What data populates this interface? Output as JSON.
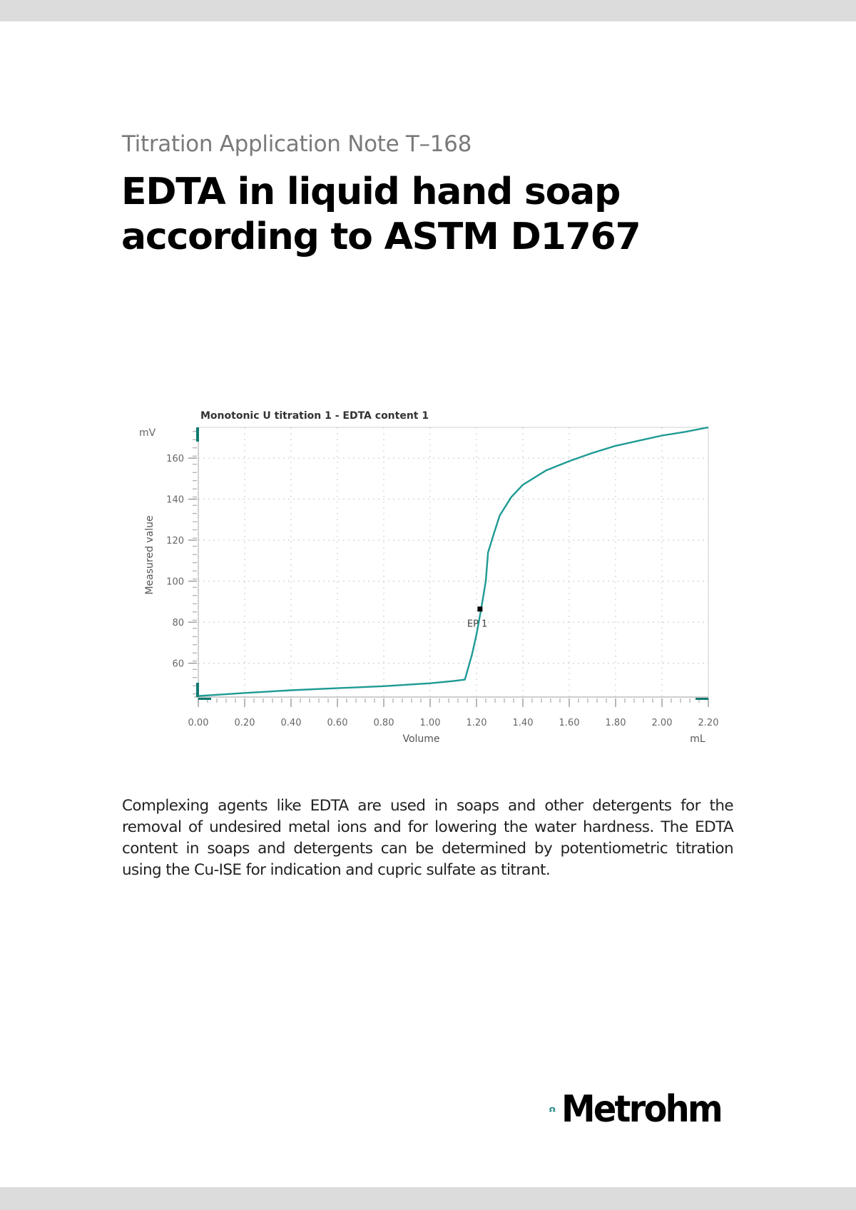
{
  "document": {
    "subtitle": "Titration Application Note T–168",
    "title_line1": "EDTA in liquid hand soap",
    "title_line2": "according to ASTM D1767",
    "body_paragraph": "Complexing agents like EDTA are used in soaps and other detergents for the removal of undesired metal ions and for lowering the water hardness. The EDTA content in soaps and detergents can be determined by potentiometric titration using the Cu-ISE for indication and cupric sulfate as titrant.",
    "logo_text": "Metrohm",
    "logo_icon": "omega-icon",
    "colors": {
      "brand_teal": "#2a8a8c",
      "curve_teal": "#1e9a94",
      "page_background": "#dcdcdc"
    }
  },
  "chart": {
    "title": "Monotonic U titration 1 - EDTA content  1",
    "y_unit": "mV",
    "y_label": "Measured value",
    "x_label": "Volume",
    "x_unit": "mL",
    "y_ticks": [
      "60",
      "80",
      "100",
      "120",
      "140",
      "160"
    ],
    "x_ticks": [
      "0.00",
      "0.20",
      "0.40",
      "0.60",
      "0.80",
      "1.00",
      "1.20",
      "1.40",
      "1.60",
      "1.80",
      "2.00",
      "2.20"
    ],
    "endpoint_label": "EP 1"
  },
  "chart_data": {
    "type": "line",
    "title": "Monotonic U titration 1 - EDTA content  1",
    "xlabel": "Volume (mL)",
    "ylabel": "Measured value (mV)",
    "xlim": [
      0.0,
      2.2
    ],
    "ylim": [
      43.5,
      175
    ],
    "grid": true,
    "legend": "none",
    "x_tick_labels": [
      "0.00",
      "0.20",
      "0.40",
      "0.60",
      "0.80",
      "1.00",
      "1.20",
      "1.40",
      "1.60",
      "1.80",
      "2.00",
      "2.20"
    ],
    "y_tick_labels": [
      "60",
      "80",
      "100",
      "120",
      "140",
      "160"
    ],
    "series": [
      {
        "name": "Measured value",
        "x": [
          0.0,
          0.2,
          0.4,
          0.6,
          0.8,
          1.0,
          1.1,
          1.15,
          1.18,
          1.2,
          1.22,
          1.24,
          1.25,
          1.28,
          1.3,
          1.35,
          1.4,
          1.5,
          1.6,
          1.7,
          1.8,
          1.9,
          2.0,
          2.1,
          2.2
        ],
        "y": [
          44.0,
          45.5,
          46.8,
          47.8,
          48.8,
          50.2,
          51.3,
          52.0,
          64.0,
          74.0,
          86.4,
          100.0,
          114.0,
          125.0,
          132.0,
          141.0,
          147.0,
          154.0,
          158.5,
          162.5,
          166.0,
          168.5,
          171.0,
          172.8,
          175.0
        ]
      }
    ],
    "annotations": [
      {
        "label": "EP 1",
        "x": 1.215,
        "y": 86.4,
        "marker": "square"
      }
    ]
  }
}
